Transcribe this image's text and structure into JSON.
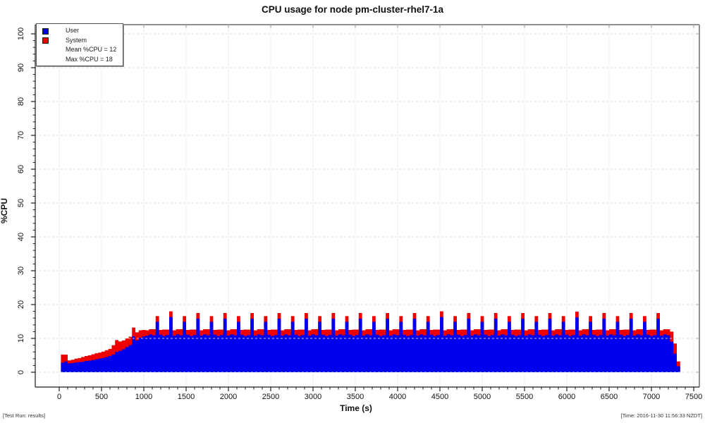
{
  "header": {
    "title": "CPU usage for node pm-cluster-rhel7-1a"
  },
  "footer": {
    "left": "[Test Run: results]",
    "right": "[Time: 2016-11-30 11:56:33 NZDT]"
  },
  "legend": {
    "items": [
      {
        "swatch": "#0000EE",
        "label": "User"
      },
      {
        "swatch": "#EE0000",
        "label": "System"
      },
      {
        "swatch": null,
        "label": "Mean %CPU = 12"
      },
      {
        "swatch": null,
        "label": "Max %CPU = 18"
      }
    ]
  },
  "colors": {
    "user": "#0000EE",
    "system": "#EE0000",
    "grid_vertical": "#ededed",
    "grid_horizontal": "#d8d8d8",
    "frame_gray": "#909090",
    "axis_black": "#1a1a1a"
  },
  "chart_data": {
    "type": "area",
    "stacked": true,
    "title": "CPU usage for node pm-cluster-rhel7-1a",
    "xlabel": "Time (s)",
    "ylabel": "%CPU",
    "xlim": [
      0,
      7500
    ],
    "ylim": [
      0,
      100
    ],
    "x_ticks": [
      0,
      500,
      1000,
      1500,
      2000,
      2500,
      3000,
      3500,
      4000,
      4500,
      5000,
      5500,
      6000,
      6500,
      7000,
      7500
    ],
    "x_minor_step": 100,
    "y_ticks": [
      0,
      10,
      20,
      30,
      40,
      50,
      60,
      70,
      80,
      90,
      100
    ],
    "y_minor_step": 2,
    "grid": {
      "vertical": "solid",
      "horizontal": "dashed"
    },
    "legend_position": "top-left",
    "stats": {
      "mean_pct_cpu": 12,
      "max_pct_cpu": 18
    },
    "t_start": 20,
    "t_step": 40,
    "series": [
      {
        "name": "User",
        "color": "#0000EE",
        "values": [
          2.8,
          3.2,
          2.6,
          2.7,
          2.9,
          3.0,
          3.1,
          3.3,
          3.4,
          3.6,
          3.8,
          4.0,
          4.2,
          4.5,
          4.8,
          5.2,
          6.0,
          6.3,
          6.8,
          7.4,
          8.0,
          10.6,
          9.4,
          10.2,
          10.6,
          10.8,
          11.2,
          10.9,
          14.9,
          11.1,
          10.7,
          11.0,
          16.3,
          10.8,
          11.2,
          10.9,
          14.9,
          11.1,
          10.7,
          11.0,
          15.8,
          10.8,
          11.2,
          10.9,
          14.9,
          11.1,
          10.7,
          11.0,
          15.8,
          10.8,
          11.2,
          10.9,
          14.9,
          11.1,
          10.7,
          11.0,
          15.8,
          10.8,
          11.2,
          10.9,
          14.9,
          11.1,
          10.7,
          11.0,
          15.8,
          10.8,
          11.2,
          10.9,
          14.9,
          11.1,
          10.7,
          11.0,
          15.8,
          10.8,
          11.2,
          10.9,
          14.9,
          11.1,
          10.7,
          11.0,
          15.8,
          10.8,
          11.2,
          10.9,
          14.9,
          11.1,
          10.7,
          11.0,
          15.8,
          10.8,
          11.2,
          10.9,
          14.9,
          11.1,
          10.7,
          11.0,
          15.8,
          10.8,
          11.2,
          10.9,
          14.9,
          11.1,
          10.7,
          11.0,
          15.8,
          10.8,
          11.2,
          10.9,
          14.9,
          11.1,
          10.7,
          11.0,
          16.3,
          10.8,
          11.2,
          10.9,
          14.9,
          11.1,
          10.7,
          11.0,
          15.8,
          10.8,
          11.2,
          10.9,
          14.9,
          11.1,
          10.7,
          11.0,
          15.8,
          10.8,
          11.2,
          10.9,
          14.9,
          11.1,
          10.7,
          11.0,
          15.8,
          10.8,
          11.2,
          10.9,
          14.9,
          11.1,
          10.7,
          11.0,
          15.8,
          10.8,
          11.2,
          10.9,
          14.9,
          11.1,
          10.7,
          11.0,
          16.2,
          10.8,
          11.2,
          10.9,
          14.9,
          11.1,
          10.7,
          11.0,
          15.8,
          10.8,
          11.2,
          10.9,
          14.9,
          11.1,
          10.7,
          11.0,
          15.8,
          10.8,
          11.2,
          10.9,
          14.9,
          11.1,
          10.7,
          11.0,
          15.8,
          10.8,
          11.2,
          10.9,
          9.0,
          5.5,
          1.8
        ]
      },
      {
        "name": "System",
        "color": "#EE0000",
        "values": [
          2.4,
          2.0,
          0.9,
          1.0,
          1.1,
          1.2,
          1.4,
          1.5,
          1.6,
          1.7,
          1.8,
          1.8,
          1.9,
          2.0,
          2.1,
          2.8,
          3.5,
          2.8,
          2.6,
          2.6,
          2.5,
          2.6,
          2.4,
          2.2,
          1.9,
          1.6,
          1.5,
          1.8,
          1.7,
          1.4,
          1.9,
          1.6,
          1.7,
          1.6,
          1.5,
          1.8,
          1.7,
          1.4,
          1.9,
          1.6,
          1.7,
          1.6,
          1.5,
          1.8,
          1.7,
          1.4,
          1.9,
          1.6,
          1.7,
          1.6,
          1.5,
          1.8,
          1.7,
          1.4,
          1.9,
          1.6,
          1.7,
          1.6,
          1.5,
          1.8,
          1.7,
          1.4,
          1.9,
          1.6,
          1.7,
          1.6,
          1.5,
          1.8,
          1.7,
          1.4,
          1.9,
          1.6,
          1.7,
          1.6,
          1.5,
          1.8,
          1.7,
          1.4,
          1.9,
          1.6,
          1.7,
          1.6,
          1.5,
          1.8,
          1.7,
          1.4,
          1.9,
          1.6,
          1.7,
          1.6,
          1.5,
          1.8,
          1.7,
          1.4,
          1.9,
          1.6,
          1.7,
          1.6,
          1.5,
          1.8,
          1.7,
          1.4,
          1.9,
          1.6,
          1.7,
          1.6,
          1.5,
          1.8,
          1.7,
          1.4,
          1.9,
          1.6,
          1.7,
          1.6,
          1.5,
          1.8,
          1.7,
          1.4,
          1.9,
          1.6,
          1.7,
          1.6,
          1.5,
          1.8,
          1.7,
          1.4,
          1.9,
          1.6,
          1.7,
          1.6,
          1.5,
          1.8,
          1.7,
          1.4,
          1.9,
          1.6,
          1.7,
          1.6,
          1.5,
          1.8,
          1.7,
          1.4,
          1.9,
          1.6,
          1.7,
          1.6,
          1.5,
          1.8,
          1.7,
          1.4,
          1.9,
          1.6,
          1.7,
          1.6,
          1.5,
          1.8,
          1.7,
          1.4,
          1.9,
          1.6,
          1.7,
          1.6,
          1.5,
          1.8,
          1.7,
          1.4,
          1.9,
          1.6,
          1.7,
          1.6,
          1.5,
          1.8,
          1.7,
          1.4,
          1.9,
          1.6,
          1.7,
          1.6,
          1.5,
          1.8,
          3.0,
          3.0,
          1.4
        ]
      }
    ]
  }
}
